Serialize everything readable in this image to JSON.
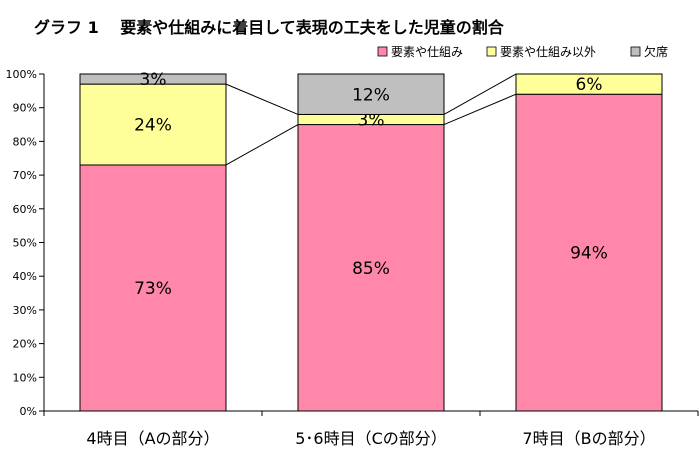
{
  "chart_data": {
    "type": "bar",
    "stacked": true,
    "title": "グラフ 1　 要素や仕組みに着目して表現の工夫をした児童の割合",
    "categories": [
      "4時目（Aの部分）",
      "5･6時目（Cの部分）",
      "7時目（Bの部分）"
    ],
    "series": [
      {
        "name": "要素や仕組み",
        "color": "#FF88AA",
        "values": [
          73,
          85,
          94
        ]
      },
      {
        "name": "要素や仕組み以外",
        "color": "#FFFF99",
        "values": [
          24,
          3,
          6
        ]
      },
      {
        "name": "欠席",
        "color": "#BFBFBF",
        "values": [
          3,
          12,
          0
        ]
      }
    ],
    "data_labels": [
      [
        "73%",
        "85%",
        "94%"
      ],
      [
        "24%",
        "3%",
        "6%"
      ],
      [
        "3%",
        "12%",
        ""
      ]
    ],
    "ylim": [
      0,
      100
    ],
    "yticks": [
      "0%",
      "10%",
      "20%",
      "30%",
      "40%",
      "50%",
      "60%",
      "70%",
      "80%",
      "90%",
      "100%"
    ],
    "legend_position": "top-right",
    "series_lines": true,
    "grid": false
  }
}
